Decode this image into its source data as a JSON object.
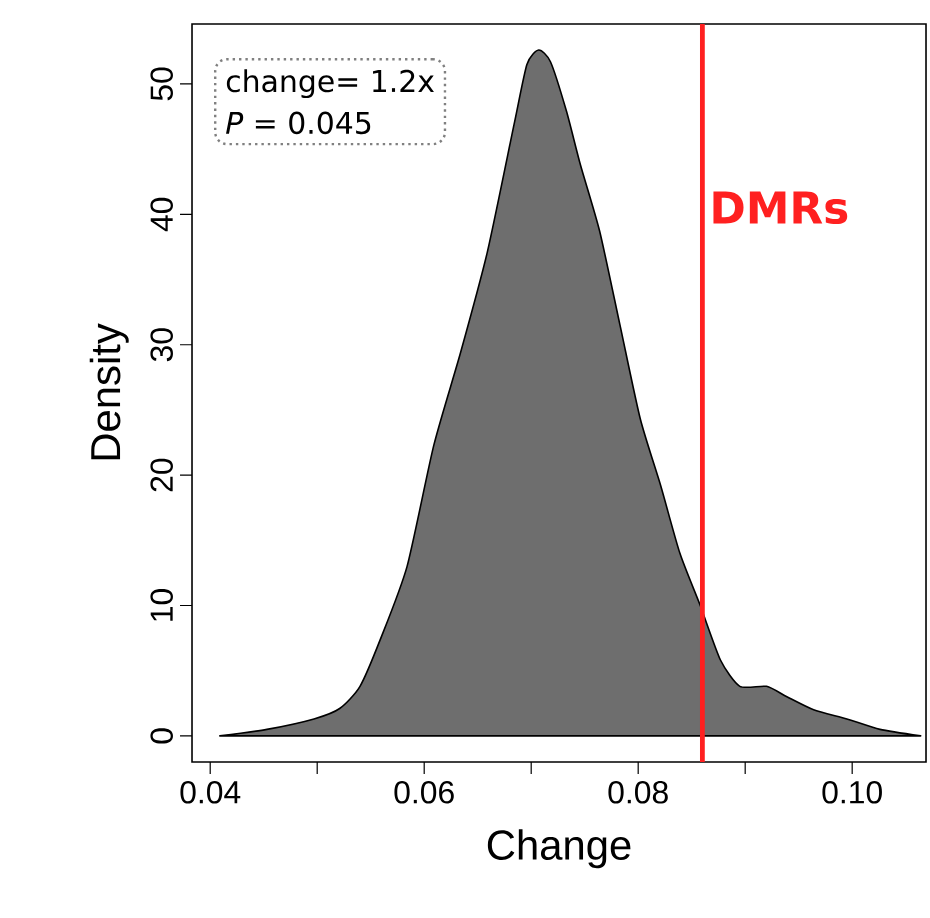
{
  "chart_data": {
    "type": "area",
    "xlabel": "Change",
    "ylabel": "Density",
    "x": [
      0.0409,
      0.0453,
      0.0497,
      0.0521,
      0.054,
      0.0559,
      0.0584,
      0.0609,
      0.0634,
      0.0659,
      0.0684,
      0.0696,
      0.0707,
      0.0718,
      0.0733,
      0.0746,
      0.0764,
      0.0783,
      0.0802,
      0.0821,
      0.0839,
      0.0858,
      0.0877,
      0.0895,
      0.092,
      0.0939,
      0.0964,
      0.0995,
      0.1026,
      0.1064
    ],
    "series": [
      {
        "color": "#6e6e6e",
        "values": [
          0,
          0.5,
          1.3,
          2.1,
          3.8,
          7.4,
          13,
          22.3,
          29.4,
          37.1,
          46.9,
          51.5,
          52.6,
          51.7,
          47.9,
          43.8,
          38.7,
          31.5,
          24.3,
          19.2,
          14,
          10,
          5.8,
          3.8,
          3.8,
          3,
          2,
          1.3,
          0.5,
          0
        ]
      }
    ],
    "xlim": [
      0.0383,
      0.1069
    ],
    "ylim": [
      -2,
      54.6
    ],
    "xticks": [
      0.04,
      {
        "value": 0.05,
        "label": null
      },
      0.06,
      {
        "value": 0.07,
        "label": null
      },
      0.08,
      {
        "value": 0.09,
        "label": null
      },
      {
        "value": 0.1,
        "label": "0.10"
      }
    ],
    "yticks": [
      0,
      10,
      20,
      30,
      40,
      50
    ],
    "ref_lines": [
      {
        "axis": "x",
        "value": 0.086,
        "label": "DMRs",
        "color": "#ff2020"
      }
    ],
    "annotations": [
      "change= 1.2x",
      "*P* = 0.045"
    ]
  }
}
